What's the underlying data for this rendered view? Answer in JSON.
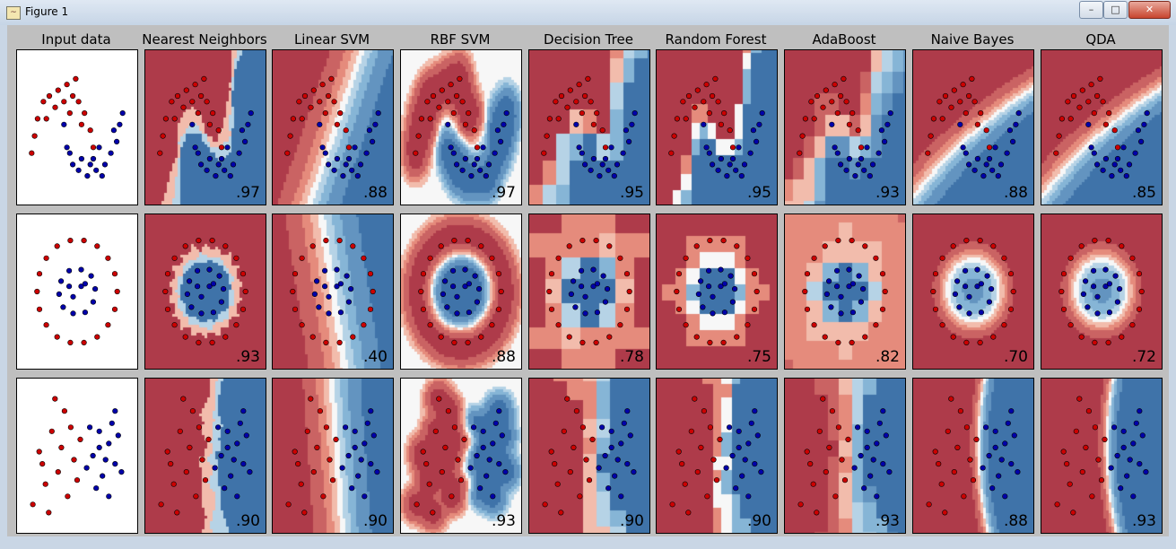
{
  "window": {
    "title": "Figure 1",
    "icon": "matplotlib-figure-icon",
    "minimize": "–",
    "maximize": "□",
    "close": "✕"
  },
  "colors": {
    "red_class": "#cc0000",
    "blue_class": "#0000aa",
    "cmap": "RdBu",
    "figure_bg": "#bfbfbf"
  },
  "chart_data": {
    "type": "scatter",
    "layout": "grid 3 rows x 9 columns, decision-boundary contour backgrounds",
    "columns": [
      "Input data",
      "Nearest Neighbors",
      "Linear SVM",
      "RBF SVM",
      "Decision Tree",
      "Random Forest",
      "AdaBoost",
      "Naive Bayes",
      "QDA"
    ],
    "datasets": [
      {
        "red": [
          [
            -1.0,
            0.2
          ],
          [
            -0.9,
            0.5
          ],
          [
            -0.7,
            0.8
          ],
          [
            -0.5,
            0.9
          ],
          [
            -0.2,
            1.0
          ],
          [
            0.1,
            1.1
          ],
          [
            0.3,
            0.9
          ],
          [
            0.5,
            0.8
          ],
          [
            0.7,
            0.6
          ],
          [
            0.9,
            0.3
          ],
          [
            1.0,
            0.0
          ],
          [
            -0.6,
            0.5
          ],
          [
            -0.3,
            0.7
          ],
          [
            0.2,
            0.6
          ],
          [
            0.6,
            0.4
          ],
          [
            -1.1,
            -0.1
          ],
          [
            0.0,
            0.8
          ],
          [
            0.4,
            1.2
          ]
        ],
        "blue": [
          [
            0.0,
            0.4
          ],
          [
            0.1,
            0.0
          ],
          [
            0.3,
            -0.3
          ],
          [
            0.5,
            -0.4
          ],
          [
            0.8,
            -0.5
          ],
          [
            1.1,
            -0.4
          ],
          [
            1.4,
            -0.3
          ],
          [
            1.6,
            -0.1
          ],
          [
            1.8,
            0.1
          ],
          [
            1.9,
            0.4
          ],
          [
            2.0,
            0.6
          ],
          [
            0.2,
            -0.1
          ],
          [
            0.6,
            -0.2
          ],
          [
            1.0,
            -0.2
          ],
          [
            1.3,
            -0.5
          ],
          [
            1.7,
            0.3
          ],
          [
            0.9,
            -0.3
          ],
          [
            1.2,
            0.0
          ]
        ],
        "scores": [
          ".97",
          ".88",
          ".97",
          ".95",
          ".95",
          ".93",
          ".88",
          ".85"
        ]
      },
      {
        "red": [
          [
            1,
            0
          ],
          [
            0.94,
            0.34
          ],
          [
            0.77,
            0.64
          ],
          [
            0.5,
            0.87
          ],
          [
            0.17,
            0.98
          ],
          [
            -0.17,
            0.98
          ],
          [
            -0.5,
            0.87
          ],
          [
            -0.77,
            0.64
          ],
          [
            -0.94,
            0.34
          ],
          [
            -1,
            0
          ],
          [
            -0.94,
            -0.34
          ],
          [
            -0.77,
            -0.64
          ],
          [
            -0.5,
            -0.87
          ],
          [
            -0.17,
            -0.98
          ],
          [
            0.17,
            -0.98
          ],
          [
            0.5,
            -0.87
          ],
          [
            0.77,
            -0.64
          ],
          [
            0.94,
            -0.34
          ]
        ],
        "blue": [
          [
            0.45,
            0.05
          ],
          [
            0.35,
            0.3
          ],
          [
            0.1,
            0.42
          ],
          [
            -0.2,
            0.4
          ],
          [
            -0.4,
            0.2
          ],
          [
            -0.45,
            -0.05
          ],
          [
            -0.35,
            -0.3
          ],
          [
            -0.1,
            -0.42
          ],
          [
            0.2,
            -0.4
          ],
          [
            0.4,
            -0.2
          ],
          [
            0.1,
            0.1
          ],
          [
            -0.1,
            -0.1
          ],
          [
            0.2,
            0.15
          ],
          [
            -0.2,
            0.1
          ]
        ],
        "scores": [
          ".93",
          ".40",
          ".88",
          ".78",
          ".75",
          ".82",
          ".70",
          ".72"
        ]
      },
      {
        "red": [
          [
            -1.2,
            0.3
          ],
          [
            -1.0,
            -0.5
          ],
          [
            -0.8,
            0.8
          ],
          [
            -0.6,
            -0.2
          ],
          [
            -0.5,
            0.4
          ],
          [
            -0.3,
            -0.8
          ],
          [
            -0.2,
            0.9
          ],
          [
            -0.1,
            0.1
          ],
          [
            0.0,
            -0.4
          ],
          [
            -1.4,
            -1.0
          ],
          [
            -0.9,
            -1.2
          ],
          [
            -0.4,
            1.3
          ],
          [
            0.1,
            0.6
          ],
          [
            -0.7,
            1.6
          ],
          [
            -1.1,
            0.0
          ]
        ],
        "blue": [
          [
            0.5,
            0.2
          ],
          [
            0.7,
            0.8
          ],
          [
            0.8,
            -0.3
          ],
          [
            1.0,
            0.5
          ],
          [
            1.2,
            0.0
          ],
          [
            1.1,
            1.0
          ],
          [
            0.6,
            -0.6
          ],
          [
            1.3,
            0.7
          ],
          [
            0.9,
            0.1
          ],
          [
            1.4,
            -0.2
          ],
          [
            0.4,
            0.9
          ],
          [
            1.0,
            -0.8
          ],
          [
            0.7,
            0.4
          ],
          [
            1.2,
            1.3
          ],
          [
            0.3,
            -0.1
          ]
        ],
        "scores": [
          ".90",
          ".90",
          ".93",
          ".90",
          ".90",
          ".93",
          ".88",
          ".93"
        ]
      }
    ]
  }
}
